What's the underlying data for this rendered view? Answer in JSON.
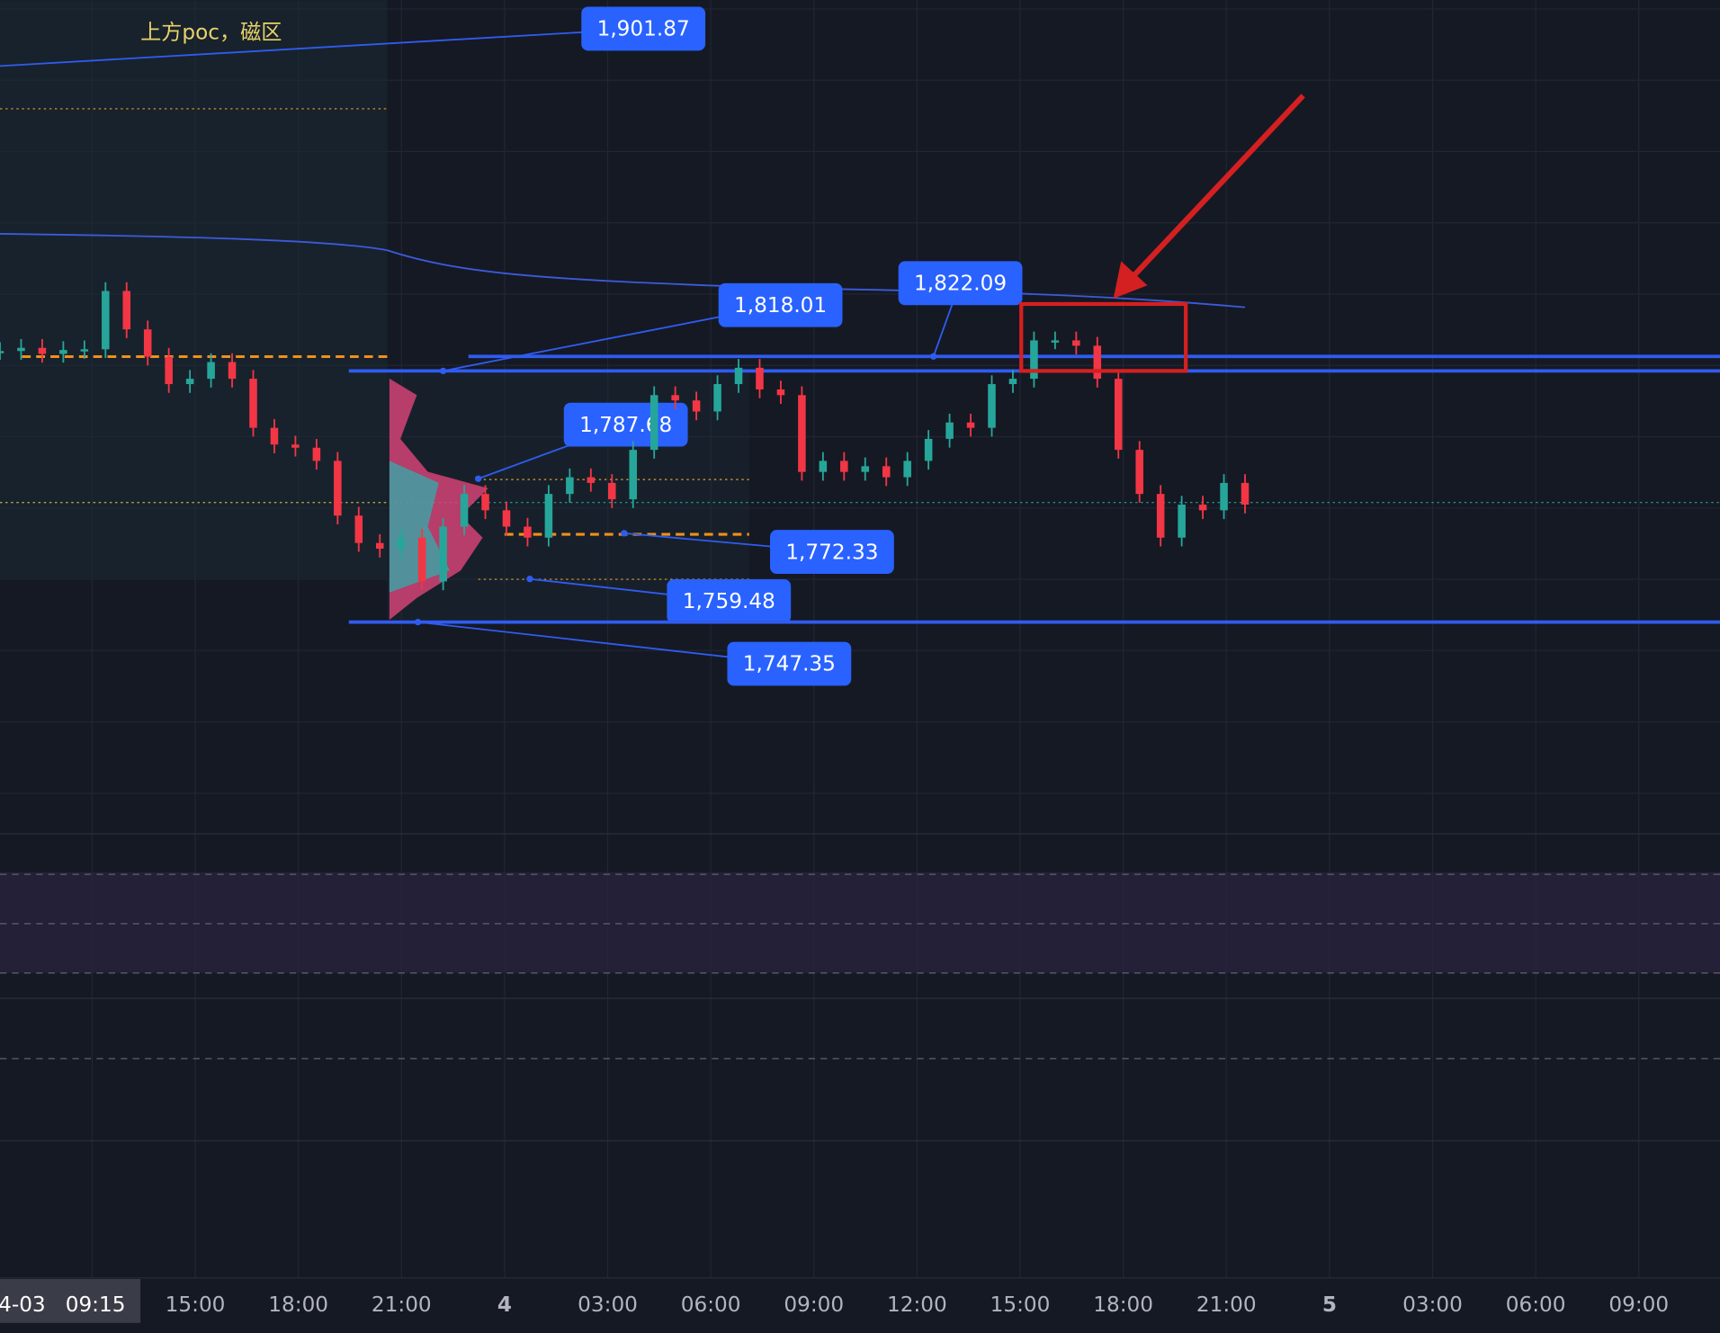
{
  "chart_data": {
    "type": "candlestick",
    "annotation": "上方poc，磁区",
    "ylim": [
      1687.8,
      1922.3
    ],
    "price_levels": [
      {
        "value": 1901.87,
        "label": "1,901.87"
      },
      {
        "value": 1818.01,
        "label": "1,818.01"
      },
      {
        "value": 1822.09,
        "label": "1,822.09"
      },
      {
        "value": 1787.68,
        "label": "1,787.68"
      },
      {
        "value": 1772.33,
        "label": "1,772.33"
      },
      {
        "value": 1759.48,
        "label": "1,759.48"
      },
      {
        "value": 1747.35,
        "label": "1,747.35"
      }
    ],
    "closes": [
      1823.6,
      1824.5,
      1822.8,
      1823.9,
      1824.1,
      1840.5,
      1829.7,
      1822.0,
      1814.3,
      1815.8,
      1820.5,
      1815.8,
      1802.0,
      1797.3,
      1796.4,
      1792.7,
      1777.3,
      1769.6,
      1768.0,
      1771.1,
      1758.8,
      1774.2,
      1783.4,
      1778.8,
      1774.2,
      1771.1,
      1783.4,
      1788.1,
      1786.5,
      1781.9,
      1795.8,
      1811.2,
      1809.7,
      1806.6,
      1814.3,
      1818.9,
      1812.8,
      1811.2,
      1789.6,
      1792.7,
      1789.6,
      1791.2,
      1788.1,
      1792.7,
      1798.9,
      1803.5,
      1802.0,
      1814.3,
      1815.8,
      1826.6,
      1826.6,
      1825.1,
      1815.8,
      1795.8,
      1783.4,
      1771.1,
      1780.4,
      1778.8,
      1786.5,
      1780.4
    ],
    "time_labels": [
      "4-03",
      "09:15",
      "15:00",
      "18:00",
      "21:00",
      "4",
      "03:00",
      "06:00",
      "09:00",
      "12:00",
      "15:00",
      "18:00",
      "21:00",
      "5",
      "03:00",
      "06:00",
      "09:00"
    ]
  }
}
